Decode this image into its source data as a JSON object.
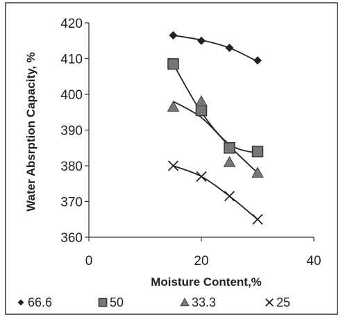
{
  "chart_data": {
    "type": "line",
    "xlabel": "Moisture Content,%",
    "ylabel": "Water Absrption Capacity, %",
    "xlim": [
      0,
      40
    ],
    "ylim": [
      360,
      420
    ],
    "xticks": [
      0,
      20,
      40
    ],
    "yticks": [
      360,
      370,
      380,
      390,
      400,
      410,
      420
    ],
    "grid": false,
    "legend_position": "bottom",
    "series": [
      {
        "name": "66.6",
        "marker": "diamond",
        "x": [
          15,
          20,
          25,
          30
        ],
        "y": [
          416.5,
          415,
          413,
          409.5
        ],
        "trend_x": [
          15,
          20,
          25,
          30
        ],
        "trend_y": [
          416.5,
          415.2,
          413,
          409.2
        ]
      },
      {
        "name": "50",
        "marker": "square",
        "x": [
          15,
          20,
          25,
          30
        ],
        "y": [
          408.5,
          395.5,
          385,
          384
        ],
        "trend_x": [
          15,
          20,
          25,
          30
        ],
        "trend_y": [
          408.5,
          395,
          386,
          383.5
        ]
      },
      {
        "name": "33.3",
        "marker": "triangle",
        "x": [
          15,
          20,
          25,
          30
        ],
        "y": [
          396.5,
          398,
          381,
          378
        ],
        "trend_x": [
          15,
          20,
          25,
          30
        ],
        "trend_y": [
          398,
          393.5,
          385.5,
          378
        ]
      },
      {
        "name": "25",
        "marker": "x",
        "x": [
          15,
          20,
          25,
          30
        ],
        "y": [
          380,
          377,
          371.5,
          365
        ],
        "trend_x": [
          15,
          20,
          25,
          30
        ],
        "trend_y": [
          380,
          377,
          371.5,
          365
        ]
      }
    ],
    "colors": {
      "line": "#222222",
      "axis": "#333333",
      "border": "#333333"
    }
  }
}
